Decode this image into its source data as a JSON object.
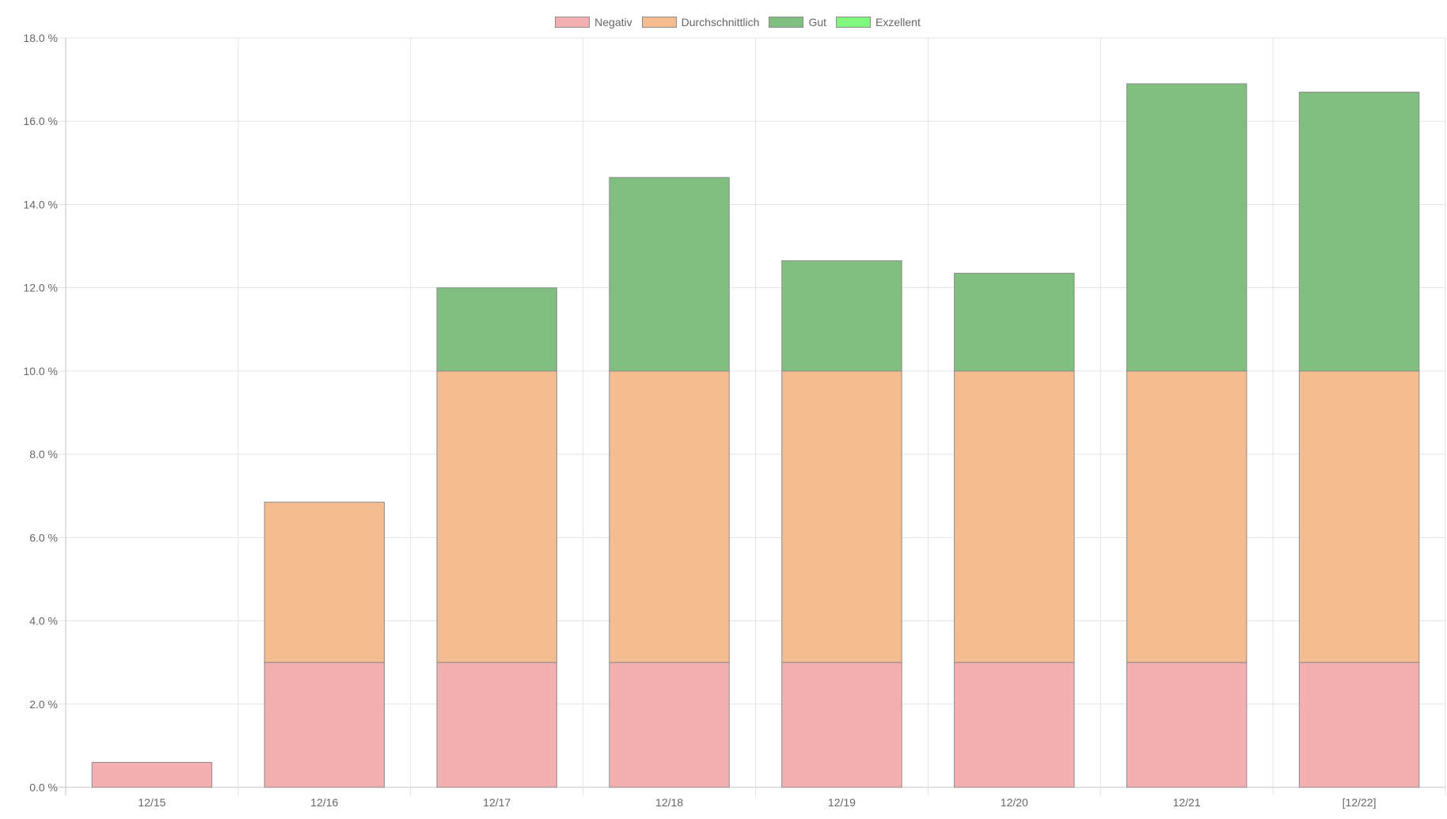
{
  "chart_data": {
    "type": "bar",
    "stacked": true,
    "categories": [
      "12/15",
      "12/16",
      "12/17",
      "12/18",
      "12/19",
      "12/20",
      "12/21",
      "[12/22]"
    ],
    "series": [
      {
        "name": "Negativ",
        "color": "#f4b0b0",
        "values": [
          0.6,
          3.0,
          3.0,
          3.0,
          3.0,
          3.0,
          3.0,
          3.0
        ]
      },
      {
        "name": "Durchschnittlich",
        "color": "#f4bd91",
        "values": [
          0,
          3.85,
          7.0,
          7.0,
          7.0,
          7.0,
          7.0,
          7.0
        ]
      },
      {
        "name": "Gut",
        "color": "#80bf80",
        "values": [
          0,
          0,
          2.0,
          4.65,
          2.65,
          2.35,
          6.9,
          6.7
        ]
      },
      {
        "name": "Exzellent",
        "color": "#80f880",
        "values": [
          0,
          0,
          0,
          0,
          0,
          0,
          0,
          0
        ]
      }
    ],
    "ylim": [
      0,
      18
    ],
    "yticks": [
      "0.0 %",
      "2.0 %",
      "4.0 %",
      "6.0 %",
      "8.0 %",
      "10.0 %",
      "12.0 %",
      "14.0 %",
      "16.0 %",
      "18.0 %"
    ],
    "legend_position": "top",
    "grid": true
  }
}
